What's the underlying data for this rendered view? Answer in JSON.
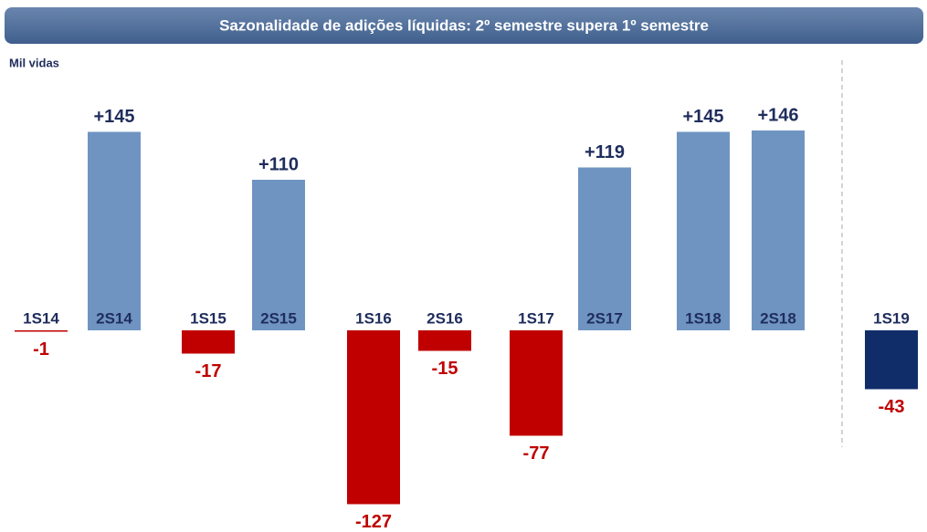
{
  "chart_data": {
    "type": "bar",
    "title": "Sazonalidade de adições líquidas: 2º semestre supera 1º semestre",
    "y_label": "Mil vidas",
    "categories": [
      "1S14",
      "2S14",
      "1S15",
      "2S15",
      "1S16",
      "2S16",
      "1S17",
      "2S17",
      "1S18",
      "2S18",
      "1S19"
    ],
    "values": [
      -1,
      145,
      -17,
      110,
      -127,
      -15,
      -77,
      119,
      145,
      146,
      -43
    ],
    "value_labels": [
      "-1",
      "+145",
      "-17",
      "+110",
      "-127",
      "-15",
      "-77",
      "+119",
      "+145",
      "+146",
      "-43"
    ],
    "colors": [
      "#c00000",
      "#6f94c2",
      "#c00000",
      "#6f94c2",
      "#c00000",
      "#c00000",
      "#c00000",
      "#6f94c2",
      "#6f94c2",
      "#6f94c2",
      "#102d69"
    ],
    "label_colors": [
      "#c00000",
      "#1f2d5c",
      "#c00000",
      "#1f2d5c",
      "#c00000",
      "#c00000",
      "#c00000",
      "#1f2d5c",
      "#1f2d5c",
      "#1f2d5c",
      "#c00000"
    ]
  }
}
